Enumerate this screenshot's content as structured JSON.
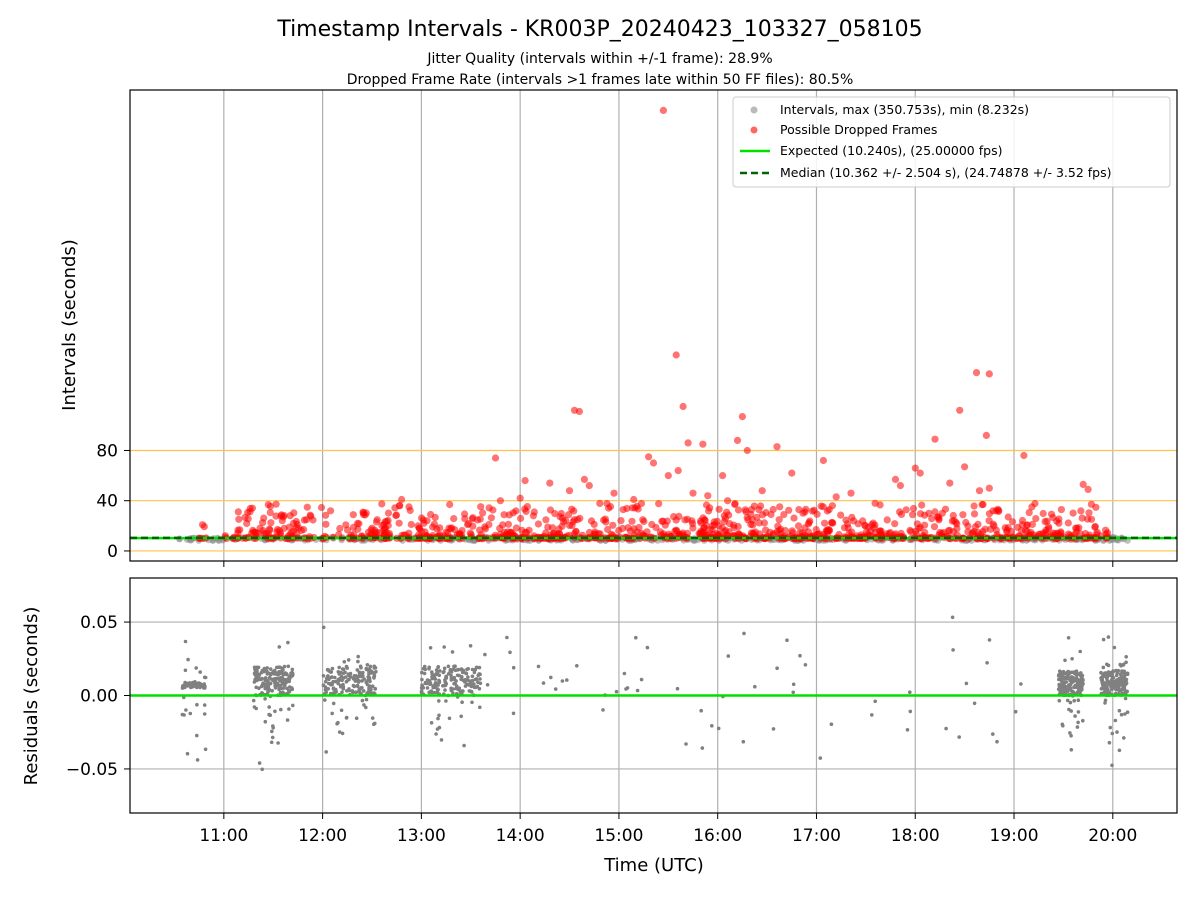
{
  "chart_data": [
    {
      "type": "scatter",
      "title": "Timestamp Intervals - KR003P_20240423_103327_058105",
      "subtitle_lines": [
        "Jitter Quality (intervals within +/-1 frame): 28.9%",
        "Dropped Frame Rate (intervals >1 frames late within 50 FF files): 80.5%"
      ],
      "ylabel": "Intervals (seconds)",
      "x_unit": "hours UTC",
      "xlim": [
        10.05,
        20.65
      ],
      "ylim": [
        -8,
        367
      ],
      "yticks": [
        0,
        40,
        80
      ],
      "ytick_labels": [
        "0",
        "40",
        "80"
      ],
      "xticks": [
        11,
        12,
        13,
        14,
        15,
        16,
        17,
        18,
        19,
        20
      ],
      "xtick_labels": [
        "11:00",
        "12:00",
        "13:00",
        "14:00",
        "15:00",
        "16:00",
        "17:00",
        "18:00",
        "19:00",
        "20:00"
      ],
      "grid": true,
      "reference_lines": [
        0,
        40,
        80
      ],
      "legend_position": "top-right",
      "legend": [
        "Intervals, max (350.753s), min (8.232s)",
        "Possible Dropped Frames",
        "Expected (10.240s), (25.00000 fps)",
        "Median (10.362 +/- 2.504 s), (24.74878 +/- 3.52 fps)"
      ],
      "expected_interval": 10.24,
      "median_interval": 10.362,
      "series": [
        {
          "name": "Intervals, max (350.753s), min (8.232s)",
          "color": "#8c8c8c",
          "x_range": [
            10.55,
            20.15
          ],
          "y_range": [
            8.232,
            11.0
          ]
        },
        {
          "name": "Possible Dropped Frames",
          "color": "#ff0000",
          "x": [
            15.45,
            15.58,
            18.62,
            18.75,
            14.55,
            14.6,
            15.65,
            16.25,
            18.45,
            18.72,
            16.2,
            18.2,
            15.7,
            15.85,
            16.6,
            13.75,
            16.3,
            15.3,
            15.35,
            19.1,
            18.0,
            18.5,
            14.05,
            16.75,
            17.07,
            14.65,
            18.05,
            15.5,
            15.6,
            14.3,
            14.7,
            16.05,
            17.8,
            18.35,
            17.85,
            14.95,
            15.75,
            16.45,
            17.35,
            19.7,
            14.5,
            18.75,
            12.8,
            13.8,
            18.65,
            19.75,
            16.1,
            14.0,
            17.2,
            15.9,
            15.15
          ],
          "y": [
            350.753,
            156.0,
            142.0,
            141.0,
            112.0,
            111.0,
            115.0,
            107.0,
            112.0,
            92.0,
            88.0,
            89.0,
            86.0,
            85.0,
            83.0,
            74.0,
            80.0,
            75.0,
            70.0,
            76.0,
            66.0,
            67.0,
            56.0,
            62.0,
            72.0,
            57.0,
            62.0,
            60.0,
            64.0,
            54.0,
            52.0,
            60.0,
            57.0,
            54.0,
            52.0,
            46.0,
            46.0,
            48.0,
            46.0,
            53.0,
            48.0,
            50.0,
            41.0,
            40.0,
            48.0,
            49.0,
            40.0,
            42.0,
            43.0,
            44.0,
            41.0
          ],
          "bulk_x_range": [
            10.75,
            19.95
          ],
          "bulk_y_range": [
            10.0,
            38.0
          ]
        }
      ]
    },
    {
      "type": "scatter",
      "xlabel": "Time (UTC)",
      "ylabel": "Residuals (seconds)",
      "xlim": [
        10.05,
        20.65
      ],
      "ylim": [
        -0.08,
        0.08
      ],
      "yticks": [
        -0.05,
        0.0,
        0.05
      ],
      "ytick_labels": [
        "−0.05",
        "0.00",
        "0.05"
      ],
      "xticks": [
        11,
        12,
        13,
        14,
        15,
        16,
        17,
        18,
        19,
        20
      ],
      "xtick_labels": [
        "11:00",
        "12:00",
        "13:00",
        "14:00",
        "15:00",
        "16:00",
        "17:00",
        "18:00",
        "19:00",
        "20:00"
      ],
      "grid": true,
      "zero_line_color": "#00e000",
      "series": [
        {
          "color": "#808080",
          "clusters": [
            {
              "x_range": [
                10.58,
                10.82
              ],
              "y_range": [
                0.005,
                0.009
              ]
            },
            {
              "x_range": [
                11.3,
                11.7
              ],
              "y_range": [
                0.0,
                0.02
              ]
            },
            {
              "x_range": [
                12.0,
                12.55
              ],
              "y_range": [
                0.0,
                0.02
              ]
            },
            {
              "x_range": [
                13.0,
                13.6
              ],
              "y_range": [
                0.0,
                0.02
              ]
            },
            {
              "x_range": [
                19.45,
                19.7
              ],
              "y_range": [
                0.0,
                0.017
              ]
            },
            {
              "x_range": [
                19.88,
                20.15
              ],
              "y_range": [
                0.0,
                0.017
              ]
            }
          ],
          "y_spread": [
            -0.08,
            0.08
          ]
        }
      ]
    }
  ]
}
